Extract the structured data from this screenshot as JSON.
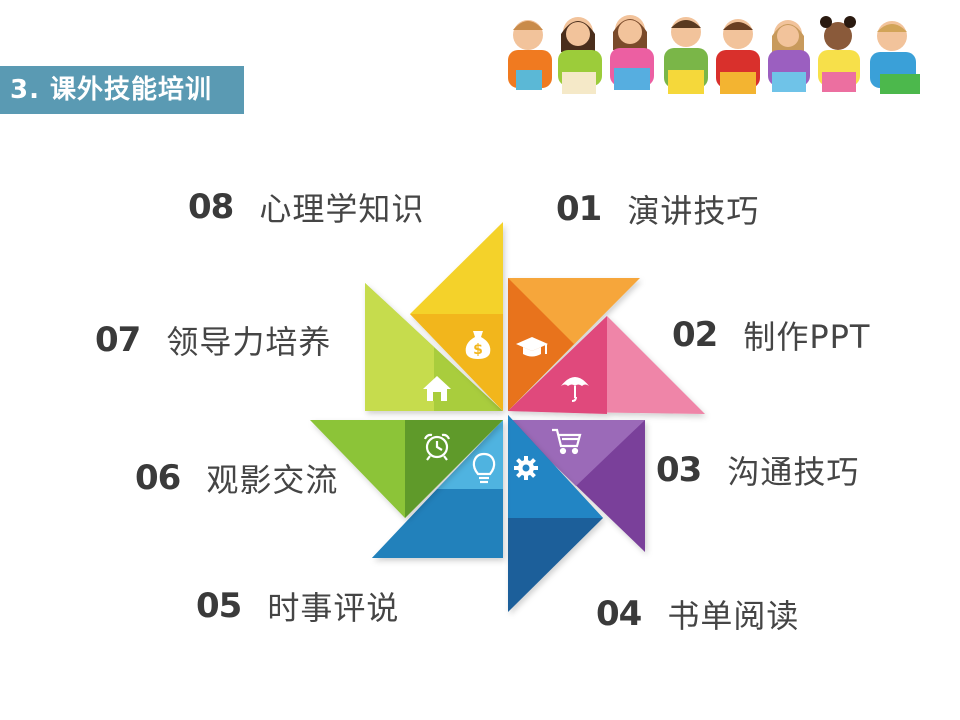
{
  "section": {
    "title": "3. 课外技能培训"
  },
  "items": [
    {
      "num": "01",
      "text": "演讲技巧",
      "icon": "graduation-cap-icon",
      "color": "#f39c2b"
    },
    {
      "num": "02",
      "text": "制作PPT",
      "icon": "umbrella-icon",
      "color": "#e84a7f"
    },
    {
      "num": "03",
      "text": "沟通技巧",
      "icon": "shopping-cart-icon",
      "color": "#7b3f98"
    },
    {
      "num": "04",
      "text": "书单阅读",
      "icon": "gear-icon",
      "color": "#1a6fa8"
    },
    {
      "num": "05",
      "text": "时事评说",
      "icon": "lightbulb-icon",
      "color": "#2e9ccf"
    },
    {
      "num": "06",
      "text": "观影交流",
      "icon": "alarm-clock-icon",
      "color": "#6aa32a"
    },
    {
      "num": "07",
      "text": "领导力培养",
      "icon": "house-icon",
      "color": "#a6c83a"
    },
    {
      "num": "08",
      "text": "心理学知识",
      "icon": "money-bag-icon",
      "color": "#f0c419"
    }
  ]
}
